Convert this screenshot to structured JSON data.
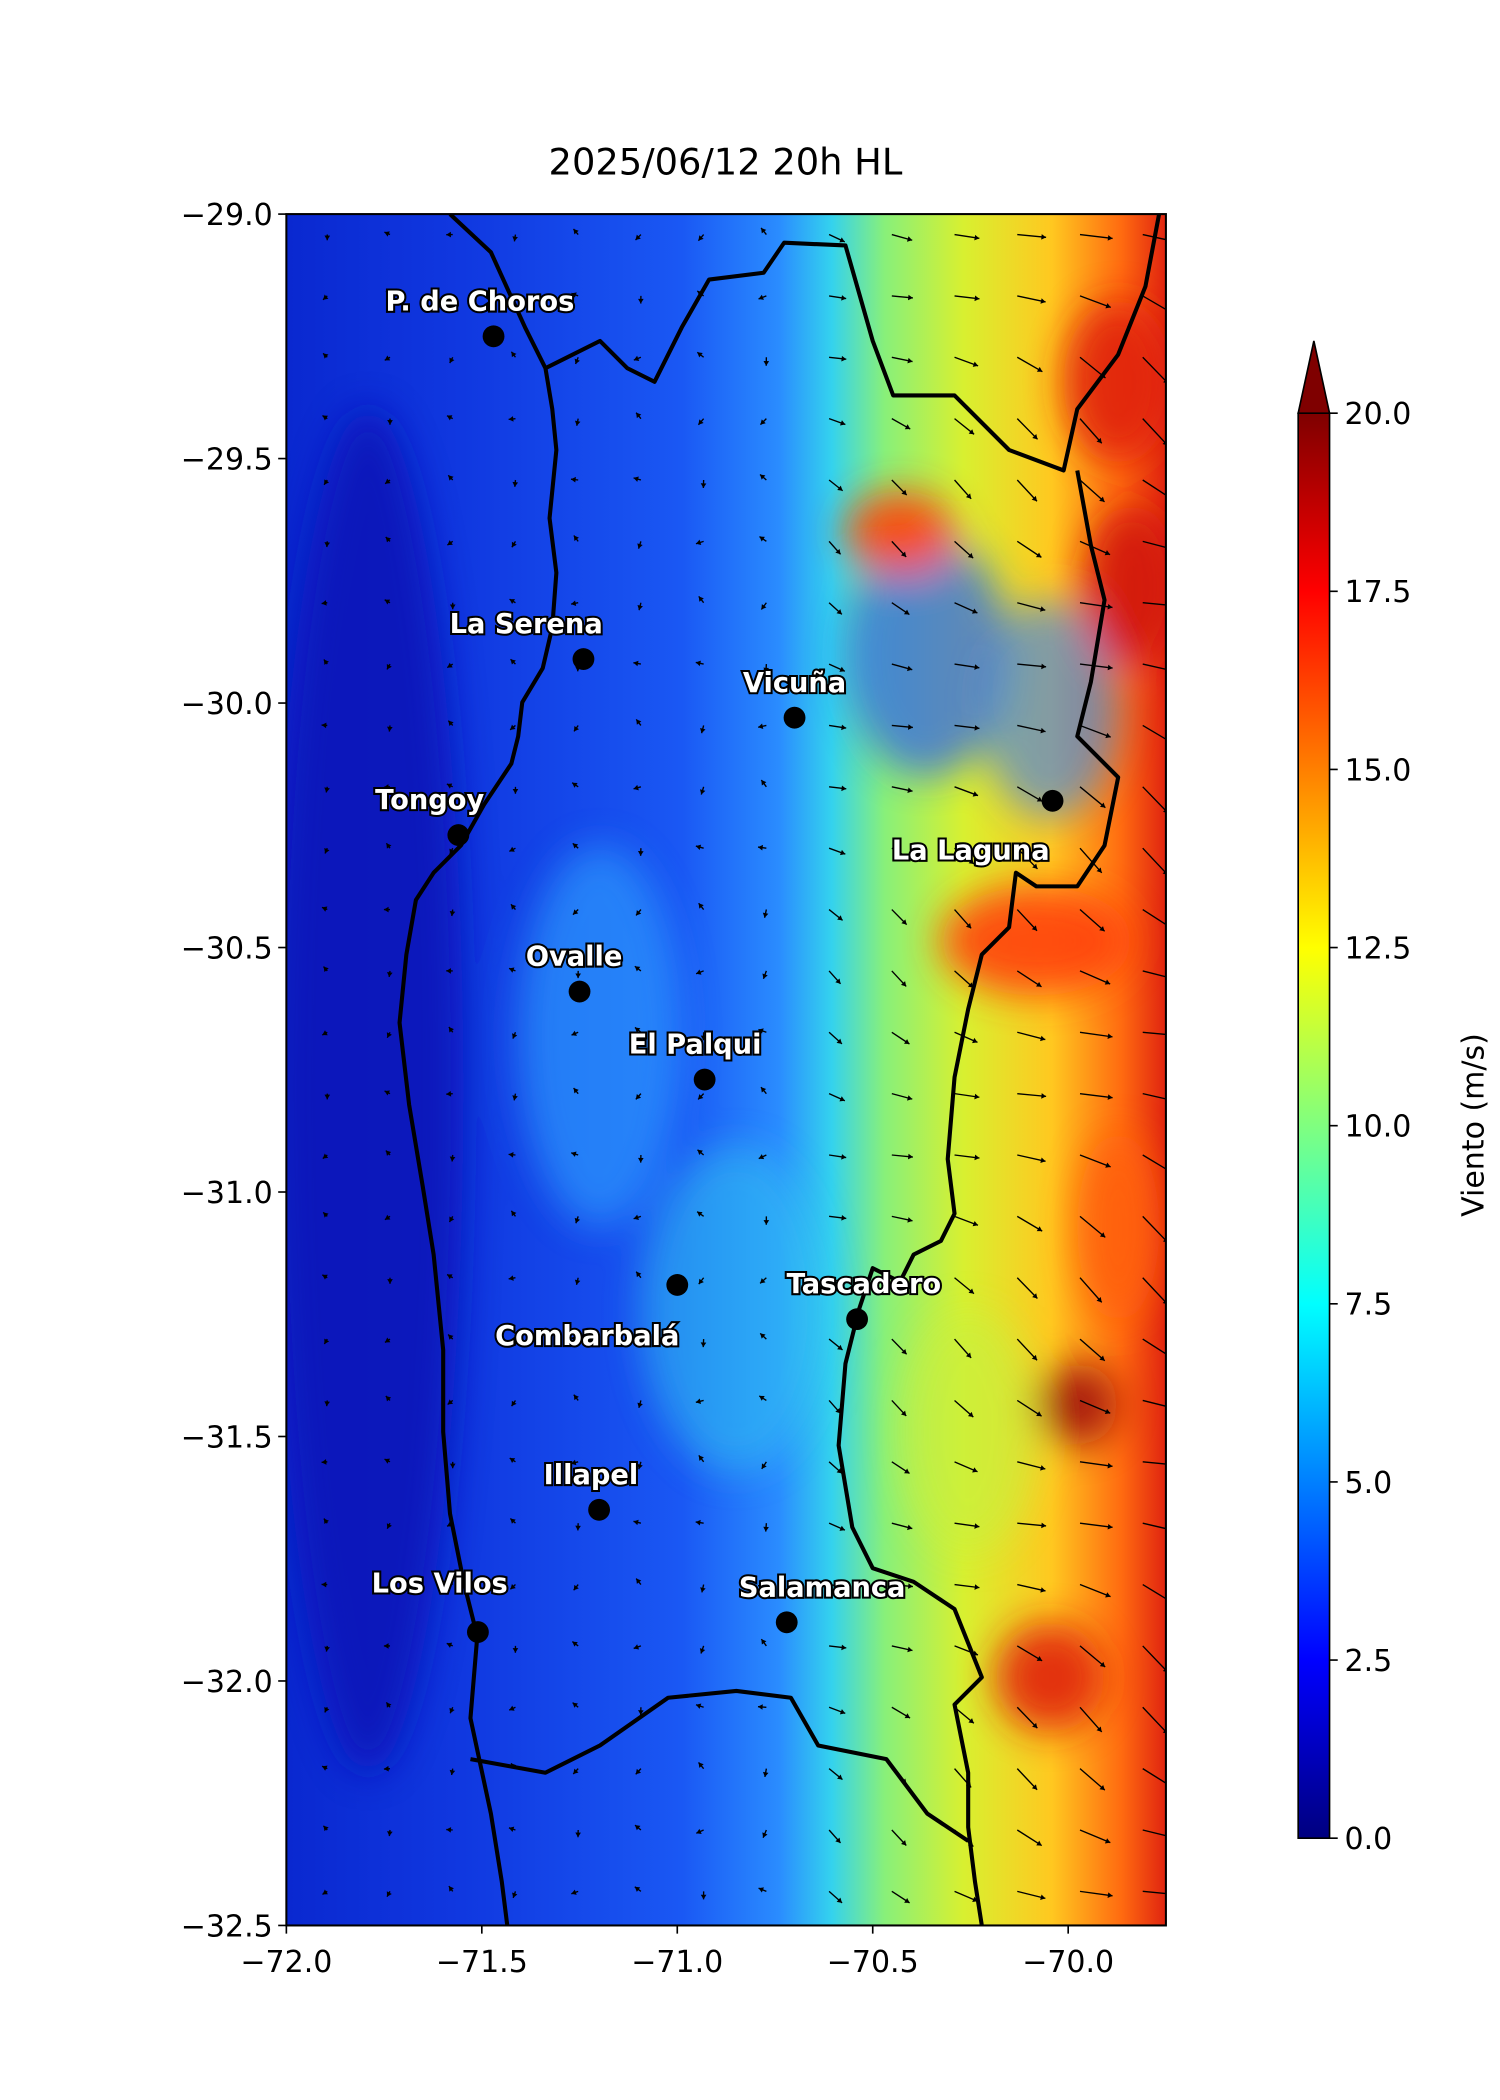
{
  "chart_data": {
    "type": "map",
    "title": "2025/06/12 20h HL",
    "xlim": [
      -72,
      -69.75
    ],
    "ylim": [
      -32.5,
      -29
    ],
    "xticks": [
      {
        "value": -72,
        "label": "−72.0"
      },
      {
        "value": -71.5,
        "label": "−71.5"
      },
      {
        "value": -71,
        "label": "−71.0"
      },
      {
        "value": -70.5,
        "label": "−70.5"
      },
      {
        "value": -70,
        "label": "−70.0"
      }
    ],
    "yticks": [
      {
        "value": -29,
        "label": "−29.0"
      },
      {
        "value": -29.5,
        "label": "−29.5"
      },
      {
        "value": -30,
        "label": "−30.0"
      },
      {
        "value": -30.5,
        "label": "−30.5"
      },
      {
        "value": -31,
        "label": "−31.0"
      },
      {
        "value": -31.5,
        "label": "−31.5"
      },
      {
        "value": -32,
        "label": "−32.0"
      },
      {
        "value": -32.5,
        "label": "−32.5"
      }
    ],
    "colorbar": {
      "label": "Viento (m/s)",
      "lim": [
        0,
        20
      ],
      "extend": "max",
      "ticks": [
        {
          "value": 0,
          "label": "0.0"
        },
        {
          "value": 2.5,
          "label": "2.5"
        },
        {
          "value": 5,
          "label": "5.0"
        },
        {
          "value": 7.5,
          "label": "7.5"
        },
        {
          "value": 10,
          "label": "10.0"
        },
        {
          "value": 12.5,
          "label": "12.5"
        },
        {
          "value": 15,
          "label": "15.0"
        },
        {
          "value": 17.5,
          "label": "17.5"
        },
        {
          "value": 20,
          "label": "20.0"
        }
      ]
    },
    "places": {
      "names": [
        "P. de Choros",
        "La Serena",
        "Vicuña",
        "Tongoy",
        "La Laguna",
        "Ovalle",
        "El Palqui",
        "Combarbalá",
        "Tascadero",
        "Illapel",
        "Los Vilos",
        "Salamanca"
      ],
      "lon": [
        -71.47,
        -71.24,
        -70.7,
        -71.56,
        -70.04,
        -71.25,
        -70.93,
        -71.0,
        -70.54,
        -71.2,
        -71.51,
        -70.72
      ],
      "lat": [
        -29.25,
        -29.91,
        -30.03,
        -30.27,
        -30.2,
        -30.59,
        -30.77,
        -31.19,
        -31.26,
        -31.65,
        -31.9,
        -31.88
      ]
    }
  }
}
